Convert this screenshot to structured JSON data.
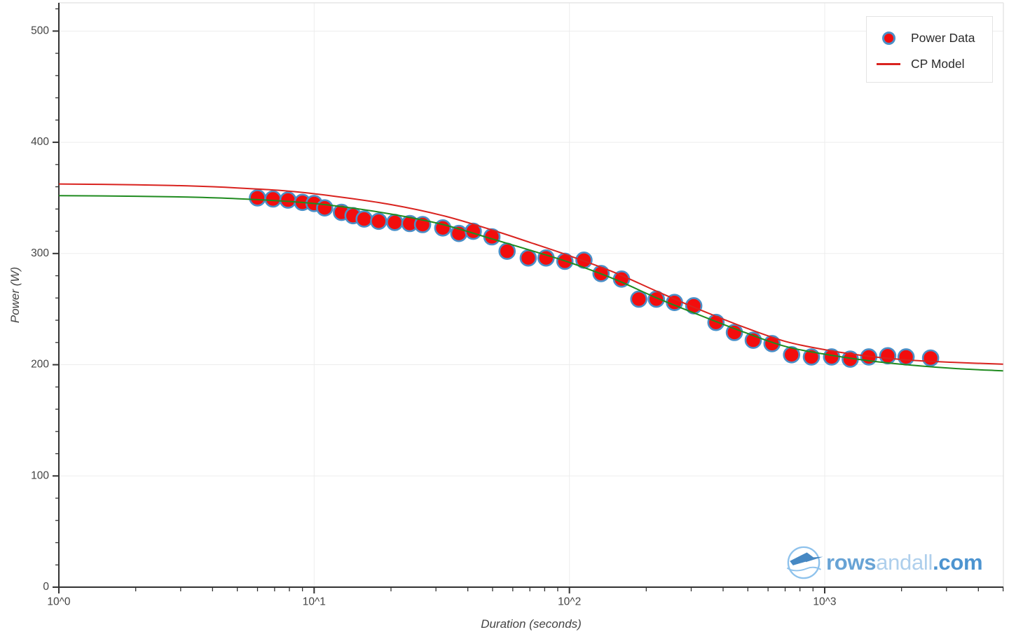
{
  "chart_data": {
    "type": "scatter",
    "xlabel": "Duration (seconds)",
    "ylabel": "Power (W)",
    "x_scale": "log",
    "x_range": [
      1,
      5000
    ],
    "y_range": [
      0,
      525
    ],
    "grid": true,
    "legend_position": "top-right",
    "x_ticks": [
      {
        "v": 1,
        "label": "10^0"
      },
      {
        "v": 10,
        "label": "10^1"
      },
      {
        "v": 100,
        "label": "10^2"
      },
      {
        "v": 1000,
        "label": "10^3"
      }
    ],
    "y_ticks": [
      {
        "v": 0,
        "label": "0"
      },
      {
        "v": 100,
        "label": "100"
      },
      {
        "v": 200,
        "label": "200"
      },
      {
        "v": 300,
        "label": "300"
      },
      {
        "v": 400,
        "label": "400"
      },
      {
        "v": 500,
        "label": "500"
      }
    ],
    "series": [
      {
        "label": "Power Data",
        "kind": "points",
        "color": "#f20d0d",
        "outline": "#4a8fc7",
        "points": [
          [
            6,
            350
          ],
          [
            6.9,
            349
          ],
          [
            7.9,
            348
          ],
          [
            9,
            346
          ],
          [
            10,
            345
          ],
          [
            11,
            341
          ],
          [
            12.8,
            337
          ],
          [
            14.2,
            334
          ],
          [
            15.7,
            331
          ],
          [
            17.9,
            329
          ],
          [
            20.7,
            328
          ],
          [
            23.7,
            327
          ],
          [
            26.6,
            326
          ],
          [
            31.9,
            323
          ],
          [
            36.9,
            318
          ],
          [
            42,
            320
          ],
          [
            49.7,
            315
          ],
          [
            57,
            302
          ],
          [
            69,
            296
          ],
          [
            81,
            296
          ],
          [
            96,
            293
          ],
          [
            114,
            294
          ],
          [
            133,
            282
          ],
          [
            160,
            277
          ],
          [
            187,
            259
          ],
          [
            219,
            259
          ],
          [
            258,
            256
          ],
          [
            307,
            253
          ],
          [
            375,
            238
          ],
          [
            443,
            229
          ],
          [
            525,
            222
          ],
          [
            622,
            219
          ],
          [
            742,
            209
          ],
          [
            887,
            207
          ],
          [
            1064,
            207
          ],
          [
            1259,
            205
          ],
          [
            1489,
            207
          ],
          [
            1766,
            208
          ],
          [
            2084,
            207
          ],
          [
            2600,
            206
          ]
        ]
      },
      {
        "label": "",
        "kind": "line",
        "color": "#1f8b1f",
        "points": [
          [
            1,
            352
          ],
          [
            2,
            351.5
          ],
          [
            3.2,
            350.7
          ],
          [
            5,
            349.3
          ],
          [
            8,
            346.8
          ],
          [
            12,
            343
          ],
          [
            20,
            335.5
          ],
          [
            32,
            326
          ],
          [
            50,
            313
          ],
          [
            70,
            303
          ],
          [
            100,
            292
          ],
          [
            150,
            277
          ],
          [
            220,
            260
          ],
          [
            320,
            245
          ],
          [
            480,
            229.5
          ],
          [
            700,
            216.5
          ],
          [
            1000,
            209.5
          ],
          [
            1500,
            203.5
          ],
          [
            2200,
            199.5
          ],
          [
            3300,
            196.5
          ],
          [
            5000,
            194.5
          ]
        ]
      },
      {
        "label": "CP Model",
        "kind": "line",
        "color": "#d9231f",
        "points": [
          [
            1,
            362.5
          ],
          [
            2,
            361.8
          ],
          [
            3.2,
            360.8
          ],
          [
            5,
            359
          ],
          [
            8,
            356
          ],
          [
            12,
            351.5
          ],
          [
            20,
            344
          ],
          [
            32,
            334
          ],
          [
            50,
            321
          ],
          [
            70,
            310
          ],
          [
            100,
            298
          ],
          [
            150,
            283
          ],
          [
            220,
            266
          ],
          [
            320,
            250
          ],
          [
            480,
            234
          ],
          [
            700,
            221
          ],
          [
            1000,
            213.5
          ],
          [
            1500,
            207.5
          ],
          [
            2200,
            204
          ],
          [
            3300,
            202
          ],
          [
            5000,
            200.5
          ]
        ]
      }
    ]
  },
  "legend": {
    "items": [
      {
        "label": "Power Data",
        "marker": "dot"
      },
      {
        "label": "CP Model",
        "marker": "line"
      }
    ]
  },
  "logo": {
    "rows": "rows",
    "andall": "andall",
    "com": ".com"
  },
  "colors": {
    "point_fill": "#f20d0d",
    "point_outline": "#4a8fc7",
    "cp_line": "#d9231f",
    "green_line": "#1f8b1f",
    "grid": "#ededed",
    "axis": "#333333",
    "tick_text": "#444444",
    "legend_border": "#e3e3e3",
    "logo_blue_bold": "#68a3d5",
    "logo_blue_light": "#aecfec",
    "logo_blue_com": "#4d94d0"
  }
}
